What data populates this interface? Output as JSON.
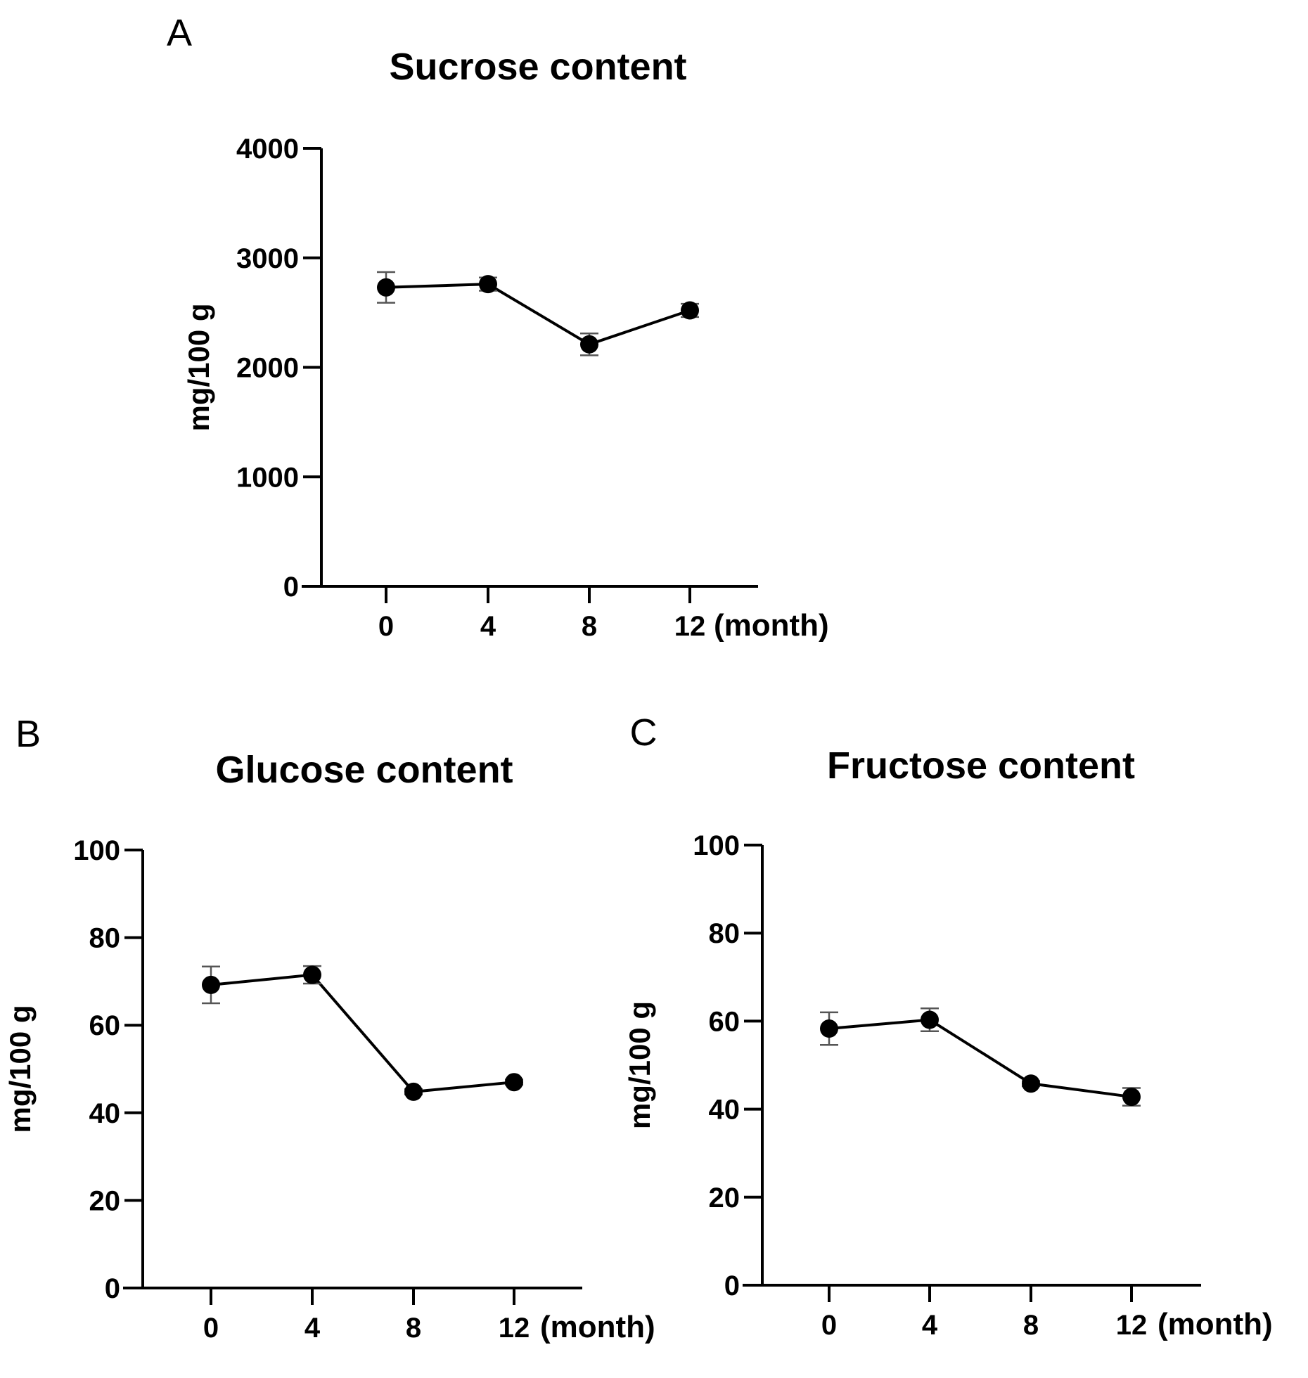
{
  "chart_data": [
    {
      "panel": "A",
      "type": "line",
      "title": "Sucrose content",
      "xlabel": "(month)",
      "ylabel": "mg/100 g",
      "categories": [
        "0",
        "4",
        "8",
        "12"
      ],
      "yticks": [
        "0",
        "1000",
        "2000",
        "3000",
        "4000"
      ],
      "ylim": [
        0,
        4000
      ],
      "series": [
        {
          "name": "Sucrose",
          "values": [
            2730,
            2760,
            2210,
            2520
          ],
          "errors": [
            140,
            60,
            100,
            60
          ]
        }
      ]
    },
    {
      "panel": "B",
      "type": "line",
      "title": "Glucose content",
      "xlabel": "(month)",
      "ylabel": "mg/100 g",
      "categories": [
        "0",
        "4",
        "8",
        "12"
      ],
      "yticks": [
        "0",
        "20",
        "40",
        "60",
        "80",
        "100"
      ],
      "ylim": [
        0,
        100
      ],
      "series": [
        {
          "name": "Glucose",
          "values": [
            69.2,
            71.5,
            44.8,
            47.0
          ],
          "errors": [
            4.2,
            2.0,
            0.6,
            0.6
          ]
        }
      ]
    },
    {
      "panel": "C",
      "type": "line",
      "title": "Fructose content",
      "xlabel": "(month)",
      "ylabel": "mg/100 g",
      "categories": [
        "0",
        "4",
        "8",
        "12"
      ],
      "yticks": [
        "0",
        "20",
        "40",
        "60",
        "80",
        "100"
      ],
      "ylim": [
        0,
        100
      ],
      "series": [
        {
          "name": "Fructose",
          "values": [
            58.3,
            60.3,
            45.8,
            42.8
          ],
          "errors": [
            3.7,
            2.6,
            0.6,
            2.0
          ]
        }
      ]
    }
  ]
}
